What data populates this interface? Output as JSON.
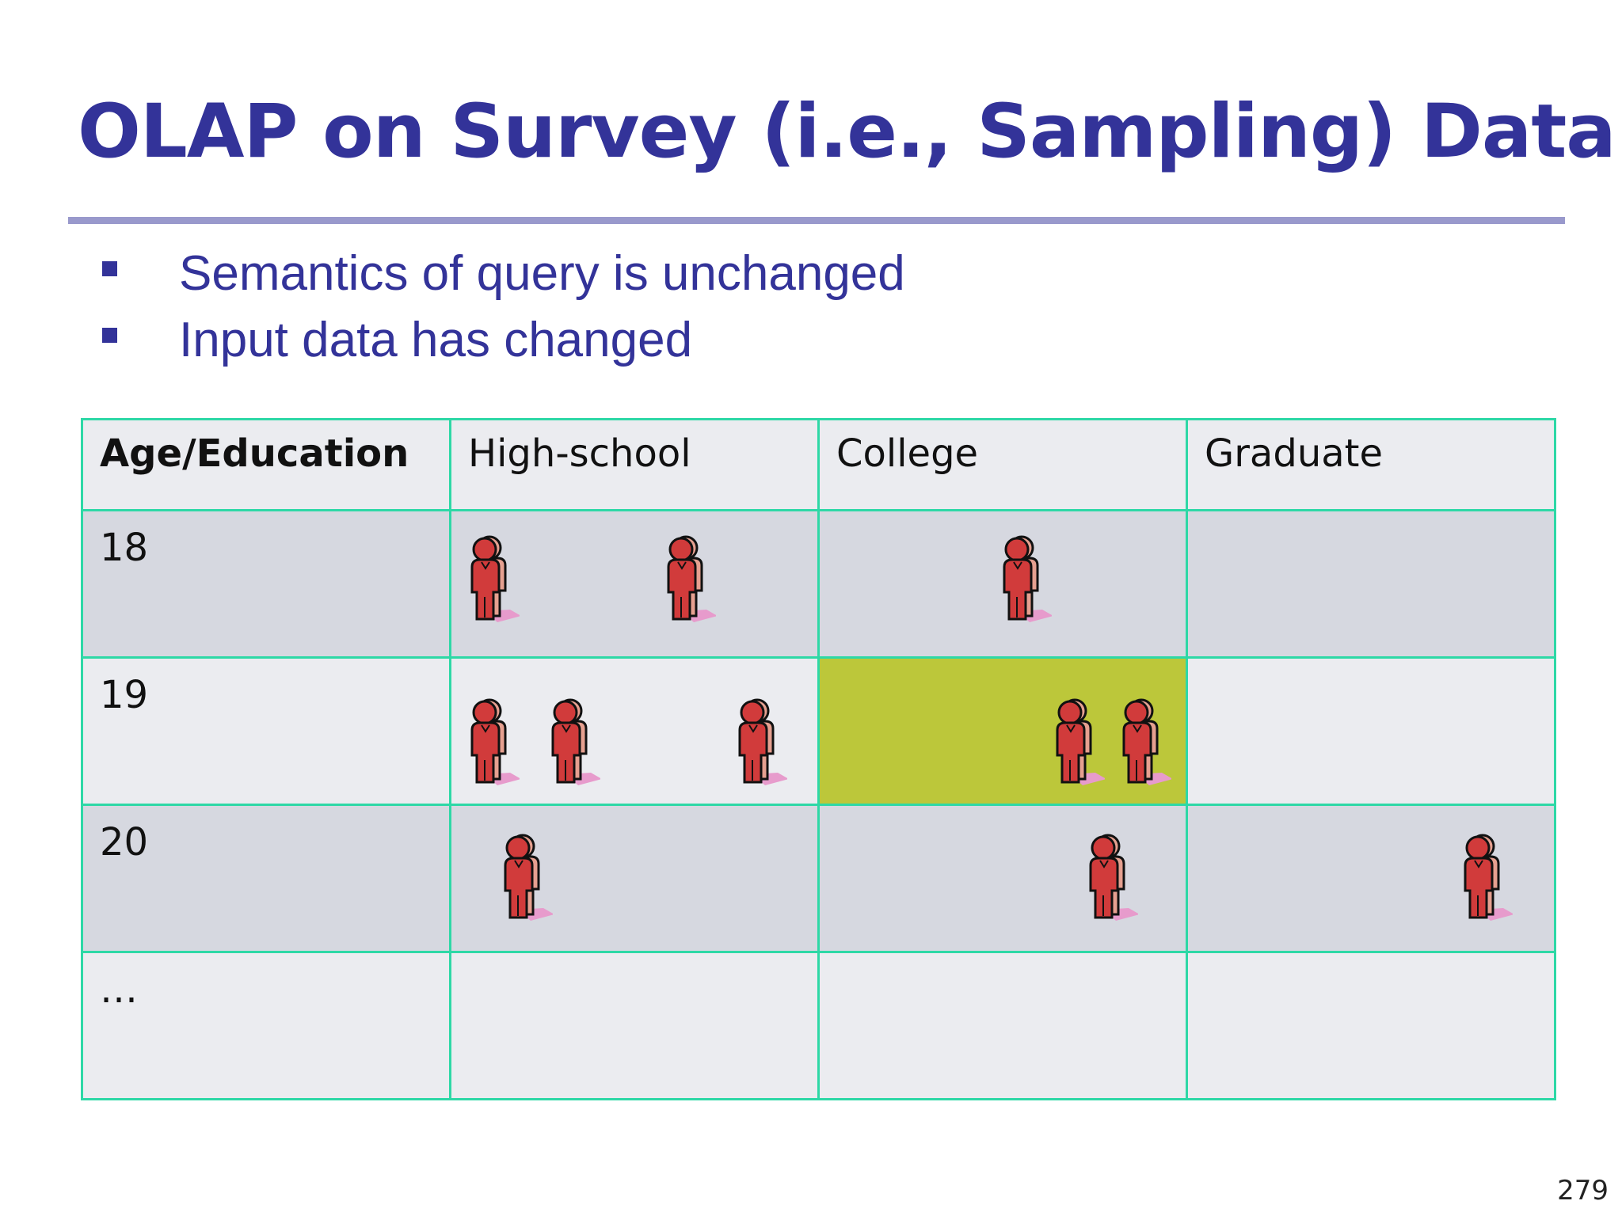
{
  "title": "OLAP on Survey (i.e., Sampling) Data",
  "bullets": [
    "Semantics of query is unchanged",
    "Input data has changed"
  ],
  "table": {
    "headers": [
      "Age/Education",
      "High-school",
      "College",
      "Graduate"
    ],
    "rows": [
      {
        "label": "18",
        "counts": [
          2,
          1,
          0
        ]
      },
      {
        "label": "19",
        "counts": [
          3,
          2,
          0
        ]
      },
      {
        "label": "20",
        "counts": [
          1,
          1,
          1
        ]
      },
      {
        "label": "…",
        "counts": [
          0,
          0,
          0
        ]
      }
    ],
    "highlighted_cell": {
      "row": "19",
      "column": "College"
    }
  },
  "icon": "person-icon",
  "colors": {
    "title": "#333399",
    "rule": "#9999cc",
    "grid": "#2ed8a6",
    "highlight": "#bcc73a",
    "person": "#d13b3b"
  },
  "page_number": "279"
}
